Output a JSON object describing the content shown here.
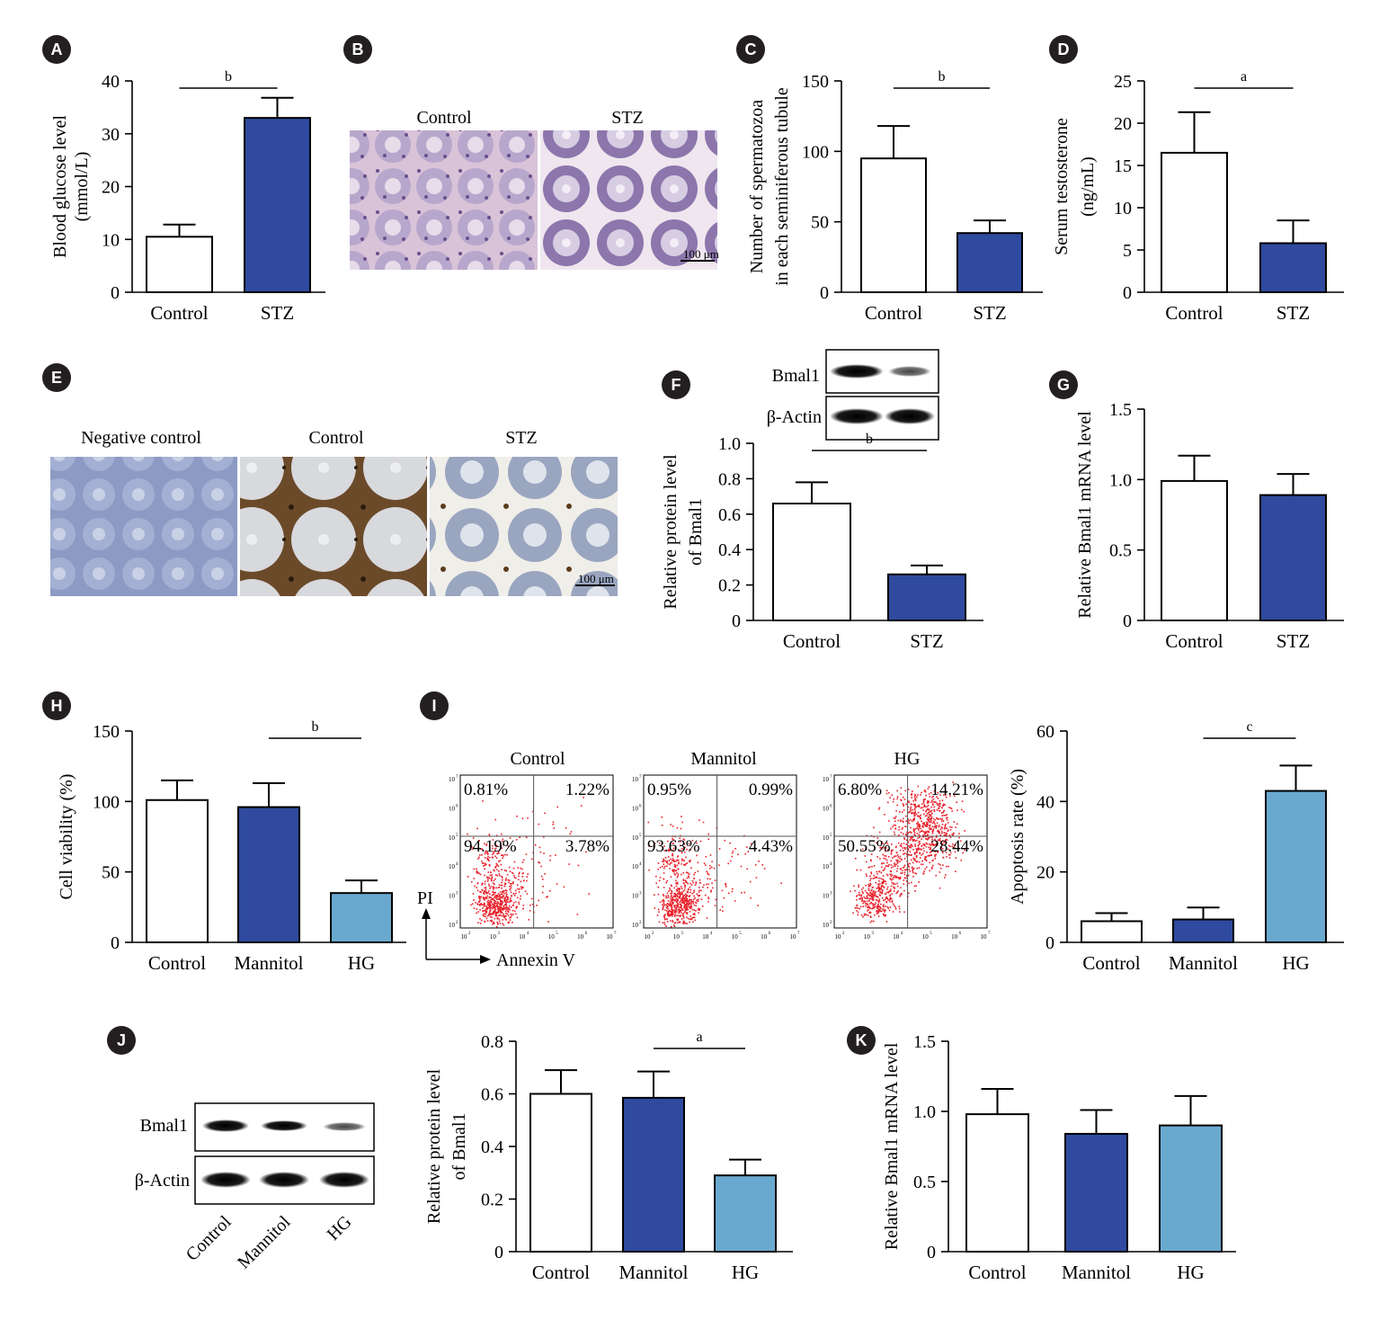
{
  "colors": {
    "control": "#ffffff",
    "stz": "#2f4a9e",
    "mannitol": "#2f4a9e",
    "hg": "#6aa9cf",
    "dots": "#e8202a",
    "badge": "#231f20"
  },
  "panels": {
    "A": {
      "badge": "A"
    },
    "B": {
      "badge": "B",
      "labels": [
        "Control",
        "STZ"
      ],
      "scale": "100 μm"
    },
    "C": {
      "badge": "C"
    },
    "D": {
      "badge": "D"
    },
    "E": {
      "badge": "E",
      "labels": [
        "Negative control",
        "Control",
        "STZ"
      ],
      "scale": "100 μm"
    },
    "F": {
      "badge": "F",
      "blot_labels": [
        "Bmal1",
        "β-Actin"
      ]
    },
    "G": {
      "badge": "G"
    },
    "H": {
      "badge": "H"
    },
    "I": {
      "badge": "I",
      "flow_titles": [
        "Control",
        "Mannitol",
        "HG"
      ],
      "axis_y": "PI",
      "axis_x": "Annexin V",
      "quadrants": [
        [
          "0.81%",
          "1.22%",
          "94.19%",
          "3.78%"
        ],
        [
          "0.95%",
          "0.99%",
          "93.63%",
          "4.43%"
        ],
        [
          "6.80%",
          "14.21%",
          "50.55%",
          "28.44%"
        ]
      ],
      "ticks_x": [
        "10",
        "10",
        "10",
        "10",
        "10",
        "10"
      ],
      "tick_exp": [
        "2",
        "3",
        "4",
        "5",
        "6",
        "7"
      ]
    },
    "J": {
      "badge": "J",
      "blot_labels": [
        "Bmal1",
        "β-Actin"
      ],
      "lane_labels": [
        "Control",
        "Mannitol",
        "HG"
      ]
    },
    "K": {
      "badge": "K"
    }
  },
  "chart_data": [
    {
      "id": "A",
      "type": "bar",
      "categories": [
        "Control",
        "STZ"
      ],
      "values": [
        10.5,
        33
      ],
      "errors": [
        2.3,
        3.8
      ],
      "ylabel": [
        "Blood glucose level",
        "(mmol/L)"
      ],
      "ylim": [
        0,
        40
      ],
      "yticks": [
        0,
        10,
        20,
        30,
        40
      ],
      "ytick_labels": [
        "0",
        "10",
        "20",
        "30",
        "40"
      ],
      "sig": {
        "from": 0,
        "to": 1,
        "label": "b"
      }
    },
    {
      "id": "C",
      "type": "bar",
      "categories": [
        "Control",
        "STZ"
      ],
      "values": [
        95,
        42
      ],
      "errors": [
        23,
        9
      ],
      "ylabel": [
        "Number of spermatozoa",
        "in each seminiferous tubule"
      ],
      "ylim": [
        0,
        150
      ],
      "yticks": [
        0,
        50,
        100,
        150
      ],
      "ytick_labels": [
        "0",
        "50",
        "100",
        "150"
      ],
      "sig": {
        "from": 0,
        "to": 1,
        "label": "b"
      }
    },
    {
      "id": "D",
      "type": "bar",
      "categories": [
        "Control",
        "STZ"
      ],
      "values": [
        16.5,
        5.8
      ],
      "errors": [
        4.8,
        2.7
      ],
      "ylabel": [
        "Serum testosterone",
        "(ng/mL)"
      ],
      "ylim": [
        0,
        25
      ],
      "yticks": [
        0,
        5,
        10,
        15,
        20,
        25
      ],
      "ytick_labels": [
        "0",
        "5",
        "10",
        "15",
        "20",
        "25"
      ],
      "sig": {
        "from": 0,
        "to": 1,
        "label": "a"
      }
    },
    {
      "id": "F",
      "type": "bar",
      "categories": [
        "Control",
        "STZ"
      ],
      "values": [
        0.66,
        0.26
      ],
      "errors": [
        0.12,
        0.05
      ],
      "ylabel": [
        "Relative protein level",
        "of Bmal1"
      ],
      "ylim": [
        0,
        1
      ],
      "yticks": [
        0,
        0.2,
        0.4,
        0.6,
        0.8,
        1.0
      ],
      "ytick_labels": [
        "0",
        "0.2",
        "0.4",
        "0.6",
        "0.8",
        "1.0"
      ],
      "sig": {
        "from": 0,
        "to": 1,
        "label": "b"
      }
    },
    {
      "id": "G",
      "type": "bar",
      "categories": [
        "Control",
        "STZ"
      ],
      "values": [
        0.99,
        0.89
      ],
      "errors": [
        0.18,
        0.15
      ],
      "ylabel": [
        "Relative Bmal1 mRNA level"
      ],
      "ylim": [
        0,
        1.5
      ],
      "yticks": [
        0,
        0.5,
        1.0,
        1.5
      ],
      "ytick_labels": [
        "0",
        "0.5",
        "1.0",
        "1.5"
      ],
      "sig": null
    },
    {
      "id": "H",
      "type": "bar",
      "categories": [
        "Control",
        "Mannitol",
        "HG"
      ],
      "values": [
        101,
        96,
        35
      ],
      "errors": [
        14,
        17,
        9
      ],
      "ylabel": [
        "Cell viability (%)"
      ],
      "ylim": [
        0,
        150
      ],
      "yticks": [
        0,
        50,
        100,
        150
      ],
      "ytick_labels": [
        "0",
        "50",
        "100",
        "150"
      ],
      "sig": {
        "from": 1,
        "to": 2,
        "label": "b"
      }
    },
    {
      "id": "I-bar",
      "type": "bar",
      "categories": [
        "Control",
        "Mannitol",
        "HG"
      ],
      "values": [
        6,
        6.5,
        43
      ],
      "errors": [
        2.3,
        3.4,
        7.2
      ],
      "ylabel": [
        "Apoptosis rate (%)"
      ],
      "ylim": [
        0,
        60
      ],
      "yticks": [
        0,
        20,
        40,
        60
      ],
      "ytick_labels": [
        "0",
        "20",
        "40",
        "60"
      ],
      "sig": {
        "from": 1,
        "to": 2,
        "label": "c"
      }
    },
    {
      "id": "J-bar",
      "type": "bar",
      "categories": [
        "Control",
        "Mannitol",
        "HG"
      ],
      "values": [
        0.6,
        0.585,
        0.29
      ],
      "errors": [
        0.09,
        0.1,
        0.06
      ],
      "ylabel": [
        "Relative protein level",
        "of Bmal1"
      ],
      "ylim": [
        0,
        0.8
      ],
      "yticks": [
        0,
        0.2,
        0.4,
        0.6,
        0.8
      ],
      "ytick_labels": [
        "0",
        "0.2",
        "0.4",
        "0.6",
        "0.8"
      ],
      "sig": {
        "from": 1,
        "to": 2,
        "label": "a"
      }
    },
    {
      "id": "K",
      "type": "bar",
      "categories": [
        "Control",
        "Mannitol",
        "HG"
      ],
      "values": [
        0.98,
        0.84,
        0.9
      ],
      "errors": [
        0.18,
        0.17,
        0.21
      ],
      "ylabel": [
        "Relative Bmal1 mRNA level"
      ],
      "ylim": [
        0,
        1.5
      ],
      "yticks": [
        0,
        0.5,
        1.0,
        1.5
      ],
      "ytick_labels": [
        "0",
        "0.5",
        "1.0",
        "1.5"
      ],
      "sig": null
    }
  ]
}
